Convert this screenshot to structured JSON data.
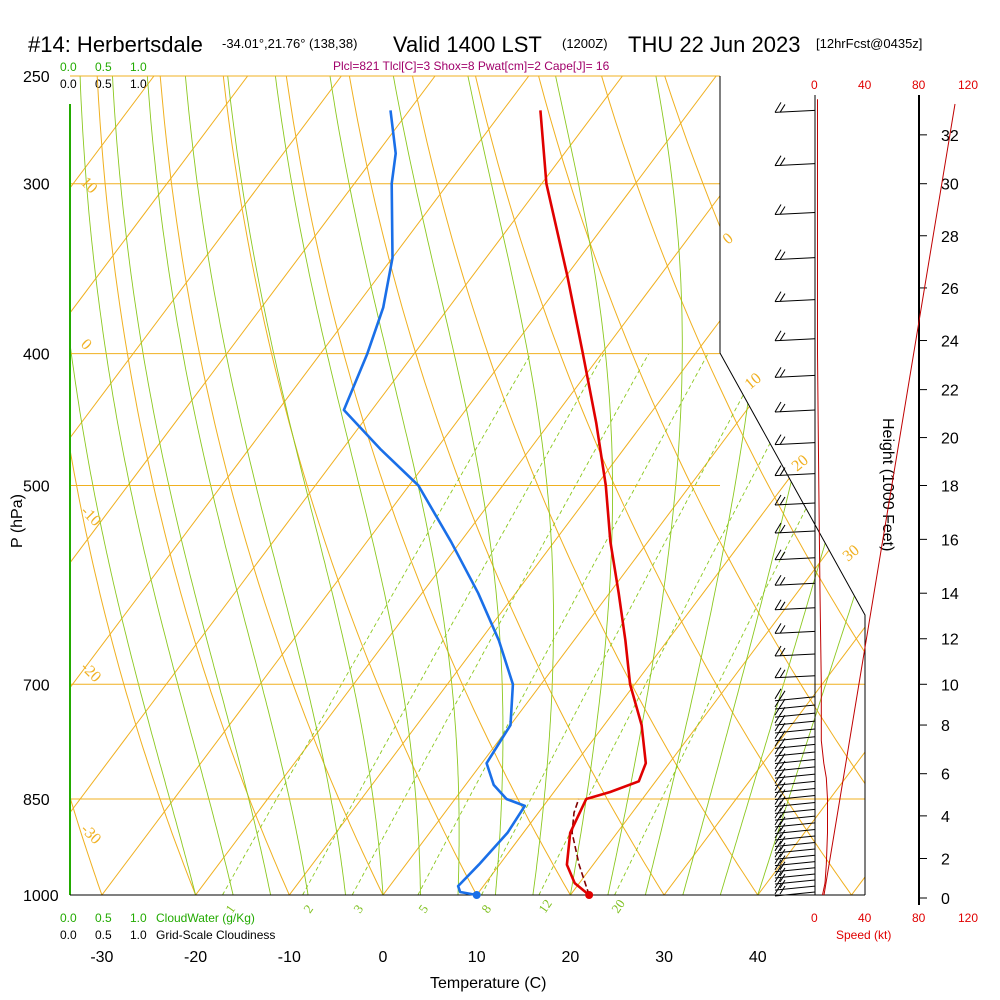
{
  "title": {
    "station": "#14: Herbertsdale",
    "coords": "-34.01°,21.76° (138,38)",
    "valid": "Valid 1400 LST",
    "zulu": "(1200Z)",
    "date": "THU 22 Jun 2023",
    "forecast": "[12hrFcst@0435z]"
  },
  "indices": "Plcl=821 Tlcl[C]=3 Shox=8 Pwat[cm]=2 Cape[J]= 16",
  "legend": {
    "cloud_water_label": "CloudWater (g/Kg)",
    "cloudiness_label": "Grid-Scale Cloudiness",
    "scale_top_green": [
      "0.0",
      "0.5",
      "1.0"
    ],
    "scale_top_black": [
      "0.0",
      "0.5",
      "1.0"
    ],
    "scale_bottom_green": [
      "0.0",
      "0.5",
      "1.0"
    ],
    "scale_bottom_black": [
      "0.0",
      "0.5",
      "1.0"
    ]
  },
  "speed_axis": {
    "label": "Speed (kt)",
    "ticks_top": [
      "0",
      "40",
      "80",
      "120"
    ],
    "ticks_bottom": [
      "0",
      "40",
      "80",
      "120"
    ]
  },
  "colors": {
    "isotherm": "#f0b020",
    "dry_adiabat": "#f0b020",
    "moist_adiabat": "#8cc820",
    "mixing_ratio": "#8cc820",
    "temperature": "#e00000",
    "dewpoint": "#1a6fe8",
    "parcel": "#800000",
    "cloud_water": "#22aa00",
    "height": "#c00000"
  },
  "chart_data": {
    "type": "skew-t",
    "xlabel": "Temperature (C)",
    "ylabel": "P (hPa)",
    "y2label": "Height (1000 Feet)",
    "x_ticks": [
      -30,
      -20,
      -10,
      0,
      10,
      20,
      30,
      40
    ],
    "p_ticks": [
      250,
      300,
      400,
      500,
      700,
      850,
      1000
    ],
    "height_ticks": [
      0,
      2,
      4,
      6,
      8,
      10,
      12,
      14,
      16,
      18,
      20,
      22,
      24,
      26,
      28,
      30,
      32
    ],
    "xlim": [
      -34,
      36
    ],
    "plim": [
      250,
      1000
    ],
    "dry_adiabat_labels": [
      10,
      0,
      -10,
      -20,
      -30
    ],
    "moist_adiabat_labels": [
      0,
      10,
      20,
      30
    ],
    "mixing_ratio_labels": [
      1,
      2,
      3,
      5,
      8,
      12,
      20
    ],
    "temperature": [
      {
        "p": 1000,
        "t": 22.0
      },
      {
        "p": 980,
        "t": 19.5
      },
      {
        "p": 950,
        "t": 17.2
      },
      {
        "p": 900,
        "t": 15.0
      },
      {
        "p": 850,
        "t": 14.0
      },
      {
        "p": 840,
        "t": 16.0
      },
      {
        "p": 825,
        "t": 18.2
      },
      {
        "p": 800,
        "t": 17.5
      },
      {
        "p": 750,
        "t": 14.0
      },
      {
        "p": 700,
        "t": 9.5
      },
      {
        "p": 650,
        "t": 5.5
      },
      {
        "p": 600,
        "t": 1.0
      },
      {
        "p": 550,
        "t": -4.0
      },
      {
        "p": 500,
        "t": -9.0
      },
      {
        "p": 450,
        "t": -15.0
      },
      {
        "p": 400,
        "t": -22.0
      },
      {
        "p": 350,
        "t": -30.0
      },
      {
        "p": 300,
        "t": -39.5
      },
      {
        "p": 265,
        "t": -46.0
      }
    ],
    "dewpoint": [
      {
        "p": 1000,
        "t": 10.0
      },
      {
        "p": 995,
        "t": 8.0
      },
      {
        "p": 985,
        "t": 7.3
      },
      {
        "p": 950,
        "t": 7.8
      },
      {
        "p": 900,
        "t": 8.3
      },
      {
        "p": 860,
        "t": 8.0
      },
      {
        "p": 850,
        "t": 5.5
      },
      {
        "p": 830,
        "t": 3.0
      },
      {
        "p": 800,
        "t": 0.5
      },
      {
        "p": 750,
        "t": 0.0
      },
      {
        "p": 700,
        "t": -3.0
      },
      {
        "p": 650,
        "t": -8.0
      },
      {
        "p": 600,
        "t": -14.0
      },
      {
        "p": 550,
        "t": -21.0
      },
      {
        "p": 500,
        "t": -29.0
      },
      {
        "p": 470,
        "t": -36.0
      },
      {
        "p": 440,
        "t": -43.0
      },
      {
        "p": 400,
        "t": -45.0
      },
      {
        "p": 370,
        "t": -47.0
      },
      {
        "p": 340,
        "t": -50.0
      },
      {
        "p": 300,
        "t": -56.0
      },
      {
        "p": 285,
        "t": -58.0
      },
      {
        "p": 265,
        "t": -62.0
      }
    ],
    "parcel": [
      {
        "p": 1000,
        "t": 22.0
      },
      {
        "p": 950,
        "t": 18.5
      },
      {
        "p": 900,
        "t": 15.2
      },
      {
        "p": 870,
        "t": 13.8
      },
      {
        "p": 850,
        "t": 13.2
      }
    ],
    "surface_temperature": 22.0,
    "surface_dewpoint": 10.0,
    "wind_speed_profile": [
      {
        "p": 1000,
        "s": 6
      },
      {
        "p": 980,
        "s": 8
      },
      {
        "p": 950,
        "s": 9
      },
      {
        "p": 900,
        "s": 10
      },
      {
        "p": 850,
        "s": 10
      },
      {
        "p": 820,
        "s": 9
      },
      {
        "p": 800,
        "s": 7
      },
      {
        "p": 770,
        "s": 5
      },
      {
        "p": 700,
        "s": 5
      },
      {
        "p": 600,
        "s": 4
      },
      {
        "p": 500,
        "s": 3
      },
      {
        "p": 400,
        "s": 2
      },
      {
        "p": 300,
        "s": 2
      },
      {
        "p": 260,
        "s": 2
      }
    ],
    "height_profile": [
      {
        "p": 1000,
        "h": 0.3
      },
      {
        "p": 900,
        "h": 3.2
      },
      {
        "p": 850,
        "h": 4.8
      },
      {
        "p": 800,
        "h": 6.5
      },
      {
        "p": 750,
        "h": 8.0
      },
      {
        "p": 700,
        "h": 10.0
      },
      {
        "p": 600,
        "h": 14.0
      },
      {
        "p": 500,
        "h": 18.0
      },
      {
        "p": 400,
        "h": 23.5
      },
      {
        "p": 350,
        "h": 26.5
      },
      {
        "p": 300,
        "h": 30.0
      },
      {
        "p": 265,
        "h": 33.0
      }
    ]
  }
}
